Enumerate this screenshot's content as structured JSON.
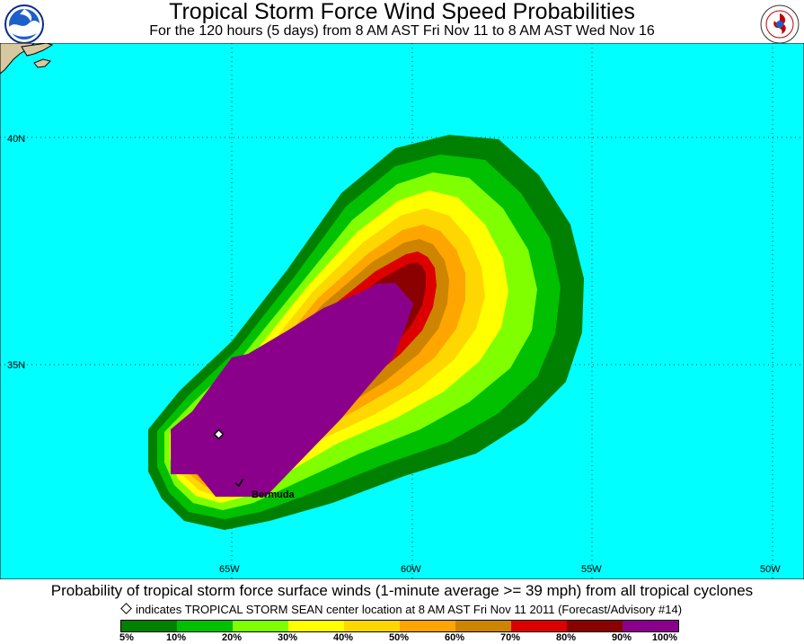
{
  "header": {
    "title": "Tropical Storm Force Wind Speed Probabilities",
    "subtitle": "For the 120 hours (5 days) from 8 AM AST Fri Nov 11 to 8 AM AST Wed Nov 16",
    "left_logo": {
      "icon": "noaa-logo-icon",
      "text": "NOAA"
    },
    "right_logo": {
      "icon": "nws-logo-icon",
      "text": "NATIONAL WEATHER SERVICE"
    }
  },
  "map": {
    "ocean_color": "#00FFFF",
    "land_color": "#D8C8A0",
    "latitude_labels": [
      "40N",
      "35N"
    ],
    "longitude_labels": [
      "65W",
      "60W",
      "55W",
      "50W"
    ],
    "place_label": "Bermuda",
    "storm_marker_icon": "diamond-marker-icon",
    "probability_levels": [
      {
        "range": "5-10%",
        "color": "#008000"
      },
      {
        "range": "10-20%",
        "color": "#00C000"
      },
      {
        "range": "20-30%",
        "color": "#80FF00"
      },
      {
        "range": "30-40%",
        "color": "#FFFF00"
      },
      {
        "range": "40-50%",
        "color": "#FFD700"
      },
      {
        "range": "50-60%",
        "color": "#FFA500"
      },
      {
        "range": "60-70%",
        "color": "#CD8500"
      },
      {
        "range": "70-80%",
        "color": "#DD0000"
      },
      {
        "range": "80-90%",
        "color": "#8B0000"
      },
      {
        "range": "90-100%",
        "color": "#8B008B"
      }
    ]
  },
  "footer": {
    "caption": "Probability of tropical storm force surface winds (1-minute average >= 39 mph) from all tropical cyclones",
    "note": "indicates TROPICAL STORM SEAN center location at 8 AM AST Fri Nov 11 2011 (Forecast/Advisory #14)"
  },
  "legend": {
    "labels": [
      "5%",
      "10%",
      "20%",
      "30%",
      "40%",
      "50%",
      "60%",
      "70%",
      "80%",
      "90%",
      "100%"
    ],
    "colors": [
      "#008000",
      "#00C000",
      "#80FF00",
      "#FFFF00",
      "#FFD700",
      "#FFA500",
      "#CD8500",
      "#DD0000",
      "#8B0000",
      "#8B008B"
    ]
  }
}
